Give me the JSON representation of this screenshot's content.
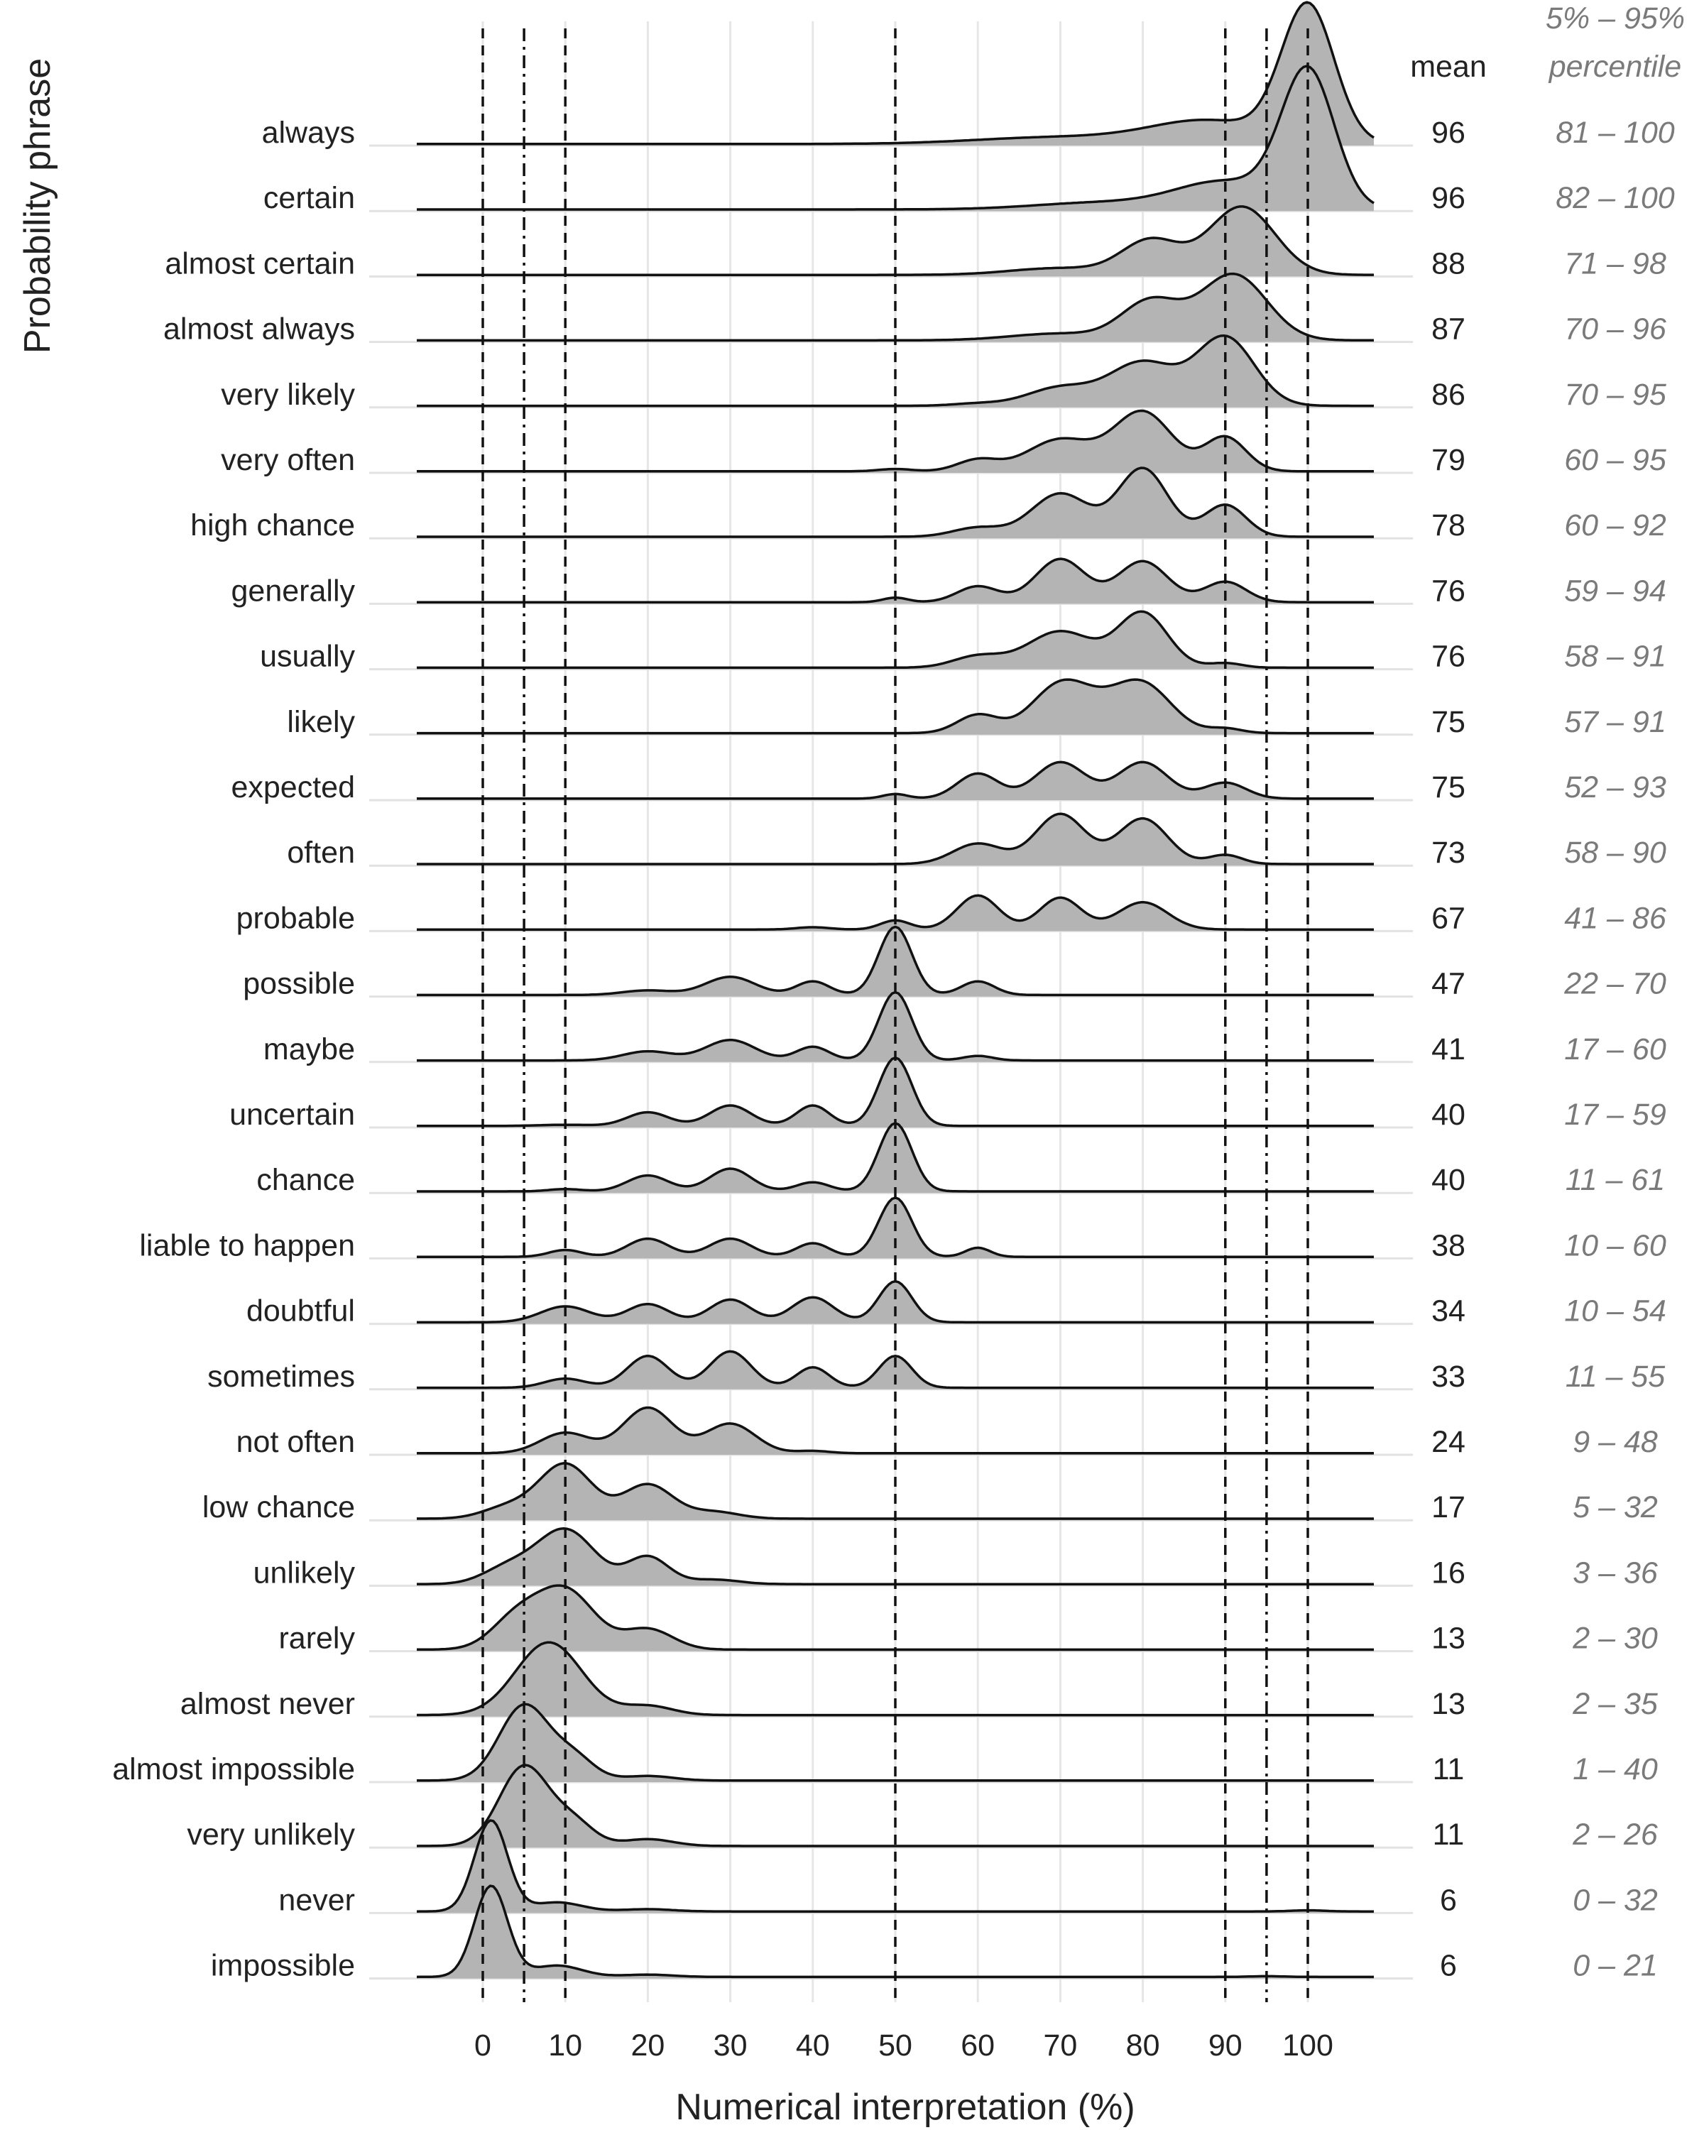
{
  "chart_data": {
    "type": "ridgeline",
    "xlabel": "Numerical interpretation (%)",
    "ylabel": "Probability phrase",
    "xticks": [
      0,
      10,
      20,
      30,
      40,
      50,
      60,
      70,
      80,
      90,
      100
    ],
    "xlim": [
      -8,
      108
    ],
    "reference_lines": [
      {
        "x": 0,
        "style": "dashed"
      },
      {
        "x": 5,
        "style": "dashdot"
      },
      {
        "x": 10,
        "style": "dashed"
      },
      {
        "x": 50,
        "style": "dashed"
      },
      {
        "x": 90,
        "style": "dashed"
      },
      {
        "x": 95,
        "style": "dashdot"
      },
      {
        "x": 100,
        "style": "dashed"
      }
    ],
    "mean_header": "mean",
    "percentile_header": [
      "5% – 95%",
      "percentile"
    ],
    "phrases": [
      {
        "label": "always",
        "mean": "96",
        "range": "81 – 100",
        "peaks": [
          [
            100,
            6,
            3.2
          ],
          [
            88,
            1,
            7
          ],
          [
            70,
            0.3,
            10
          ]
        ]
      },
      {
        "label": "certain",
        "mean": "96",
        "range": "82 – 100",
        "peaks": [
          [
            100,
            6,
            3.2
          ],
          [
            90,
            1.2,
            6
          ],
          [
            75,
            0.3,
            8
          ]
        ]
      },
      {
        "label": "almost certain",
        "mean": "88",
        "range": "71 – 98",
        "peaks": [
          [
            92,
            3.0,
            4
          ],
          [
            81,
            1.5,
            3.5
          ],
          [
            70,
            0.3,
            6
          ]
        ]
      },
      {
        "label": "almost always",
        "mean": "87",
        "range": "70 – 96",
        "peaks": [
          [
            91,
            2.9,
            4
          ],
          [
            81,
            1.7,
            3.5
          ],
          [
            70,
            0.3,
            6
          ]
        ]
      },
      {
        "label": "very likely",
        "mean": "86",
        "range": "70 – 95",
        "peaks": [
          [
            90,
            3.0,
            3.5
          ],
          [
            80,
            1.9,
            4
          ],
          [
            70,
            0.8,
            4
          ],
          [
            60,
            0.1,
            3
          ]
        ]
      },
      {
        "label": "very often",
        "mean": "79",
        "range": "60 – 95",
        "peaks": [
          [
            80,
            2.6,
            3.5
          ],
          [
            90,
            1.5,
            2.5
          ],
          [
            70,
            1.4,
            4
          ],
          [
            60,
            0.5,
            2.5
          ],
          [
            50,
            0.1,
            2
          ]
        ]
      },
      {
        "label": "high chance",
        "mean": "78",
        "range": "60 – 92",
        "peaks": [
          [
            80,
            3.0,
            3
          ],
          [
            70,
            1.9,
            3.5
          ],
          [
            90,
            1.4,
            2.5
          ],
          [
            60,
            0.4,
            3
          ]
        ]
      },
      {
        "label": "generally",
        "mean": "76",
        "range": "59 – 94",
        "peaks": [
          [
            70,
            1.9,
            3
          ],
          [
            80,
            1.8,
            3
          ],
          [
            90,
            0.9,
            2.5
          ],
          [
            60,
            0.7,
            2.5
          ],
          [
            50,
            0.2,
            1.5
          ]
        ]
      },
      {
        "label": "usually",
        "mean": "76",
        "range": "58 – 91",
        "peaks": [
          [
            80,
            2.4,
            3
          ],
          [
            70,
            1.6,
            4
          ],
          [
            60,
            0.5,
            3
          ],
          [
            90,
            0.2,
            2
          ]
        ]
      },
      {
        "label": "likely",
        "mean": "75",
        "range": "57 – 91",
        "peaks": [
          [
            70,
            2.0,
            3.5
          ],
          [
            80,
            2.0,
            3.5
          ],
          [
            75,
            0.6,
            4
          ],
          [
            60,
            0.8,
            2.5
          ],
          [
            90,
            0.2,
            2
          ]
        ]
      },
      {
        "label": "expected",
        "mean": "75",
        "range": "52 – 93",
        "peaks": [
          [
            70,
            1.6,
            3
          ],
          [
            80,
            1.6,
            3
          ],
          [
            60,
            1.1,
            2.5
          ],
          [
            90,
            0.7,
            2.5
          ],
          [
            50,
            0.2,
            1.5
          ]
        ]
      },
      {
        "label": "often",
        "mean": "73",
        "range": "58 – 90",
        "peaks": [
          [
            70,
            2.2,
            3
          ],
          [
            80,
            2.0,
            3
          ],
          [
            60,
            0.9,
            3
          ],
          [
            90,
            0.4,
            2
          ]
        ]
      },
      {
        "label": "probable",
        "mean": "67",
        "range": "41 – 86",
        "peaks": [
          [
            60,
            1.5,
            2.5
          ],
          [
            70,
            1.4,
            2.5
          ],
          [
            80,
            1.2,
            3
          ],
          [
            50,
            0.4,
            1.8
          ],
          [
            40,
            0.1,
            2
          ]
        ]
      },
      {
        "label": "possible",
        "mean": "47",
        "range": "22 – 70",
        "peaks": [
          [
            50,
            3.0,
            2
          ],
          [
            30,
            0.8,
            3
          ],
          [
            40,
            0.6,
            2
          ],
          [
            60,
            0.6,
            2
          ],
          [
            20,
            0.2,
            3
          ]
        ]
      },
      {
        "label": "maybe",
        "mean": "41",
        "range": "17 – 60",
        "peaks": [
          [
            50,
            3.0,
            2
          ],
          [
            30,
            0.9,
            3
          ],
          [
            40,
            0.6,
            2
          ],
          [
            20,
            0.4,
            3
          ],
          [
            60,
            0.2,
            1.8
          ]
        ]
      },
      {
        "label": "uncertain",
        "mean": "40",
        "range": "17 – 59",
        "peaks": [
          [
            50,
            3.0,
            2
          ],
          [
            30,
            0.9,
            2.5
          ],
          [
            40,
            0.9,
            2
          ],
          [
            20,
            0.6,
            2.5
          ],
          [
            10,
            0.05,
            3
          ]
        ]
      },
      {
        "label": "chance",
        "mean": "40",
        "range": "11 – 61",
        "peaks": [
          [
            50,
            3.0,
            2
          ],
          [
            30,
            1.0,
            2.5
          ],
          [
            20,
            0.7,
            2.5
          ],
          [
            40,
            0.4,
            2
          ],
          [
            10,
            0.1,
            2
          ]
        ]
      },
      {
        "label": "liable to happen",
        "mean": "38",
        "range": "10 – 60",
        "peaks": [
          [
            50,
            2.6,
            2
          ],
          [
            30,
            0.8,
            2.5
          ],
          [
            20,
            0.8,
            2.5
          ],
          [
            40,
            0.6,
            2
          ],
          [
            10,
            0.3,
            2
          ],
          [
            60,
            0.4,
            1.5
          ]
        ]
      },
      {
        "label": "doubtful",
        "mean": "34",
        "range": "10 – 54",
        "peaks": [
          [
            50,
            1.8,
            2
          ],
          [
            40,
            1.1,
            2.5
          ],
          [
            30,
            1.0,
            2.5
          ],
          [
            20,
            0.8,
            2.5
          ],
          [
            10,
            0.7,
            3
          ]
        ]
      },
      {
        "label": "sometimes",
        "mean": "33",
        "range": "11 – 55",
        "peaks": [
          [
            30,
            1.6,
            2.5
          ],
          [
            20,
            1.4,
            2.5
          ],
          [
            50,
            1.4,
            2
          ],
          [
            40,
            0.9,
            2
          ],
          [
            10,
            0.4,
            2.5
          ]
        ]
      },
      {
        "label": "not often",
        "mean": "24",
        "range": "9 – 48",
        "peaks": [
          [
            20,
            2.0,
            3
          ],
          [
            30,
            1.3,
            3
          ],
          [
            10,
            0.9,
            3
          ],
          [
            40,
            0.1,
            2
          ]
        ]
      },
      {
        "label": "low chance",
        "mean": "17",
        "range": "5 – 32",
        "peaks": [
          [
            10,
            2.4,
            3.2
          ],
          [
            20,
            1.5,
            3
          ],
          [
            28,
            0.3,
            3
          ],
          [
            3,
            0.5,
            3
          ]
        ]
      },
      {
        "label": "unlikely",
        "mean": "16",
        "range": "3 – 36",
        "peaks": [
          [
            10,
            2.4,
            3.5
          ],
          [
            20,
            1.2,
            2.5
          ],
          [
            3,
            0.7,
            3
          ],
          [
            28,
            0.2,
            3
          ]
        ]
      },
      {
        "label": "rarely",
        "mean": "13",
        "range": "2 – 30",
        "peaks": [
          [
            10,
            2.6,
            3.5
          ],
          [
            4,
            1.3,
            3
          ],
          [
            20,
            0.9,
            3
          ]
        ]
      },
      {
        "label": "almost never",
        "mean": "13",
        "range": "2 – 35",
        "peaks": [
          [
            8,
            3.2,
            4
          ],
          [
            20,
            0.4,
            3
          ]
        ]
      },
      {
        "label": "almost impossible",
        "mean": "11",
        "range": "1 – 40",
        "peaks": [
          [
            5,
            3.3,
            3
          ],
          [
            11,
            1.0,
            2.5
          ],
          [
            20,
            0.2,
            3
          ]
        ]
      },
      {
        "label": "very unlikely",
        "mean": "11",
        "range": "2 – 26",
        "peaks": [
          [
            5,
            3.5,
            3
          ],
          [
            11,
            1.0,
            2.5
          ],
          [
            20,
            0.3,
            3
          ]
        ]
      },
      {
        "label": "never",
        "mean": "6",
        "range": "0 – 32",
        "peaks": [
          [
            1,
            4.0,
            2
          ],
          [
            9,
            0.4,
            3
          ],
          [
            20,
            0.1,
            3
          ],
          [
            100,
            0.05,
            2
          ]
        ]
      },
      {
        "label": "impossible",
        "mean": "6",
        "range": "0 – 21",
        "peaks": [
          [
            1,
            4.0,
            2
          ],
          [
            9,
            0.5,
            3
          ],
          [
            20,
            0.1,
            3
          ],
          [
            95,
            0.03,
            2
          ]
        ]
      }
    ]
  }
}
